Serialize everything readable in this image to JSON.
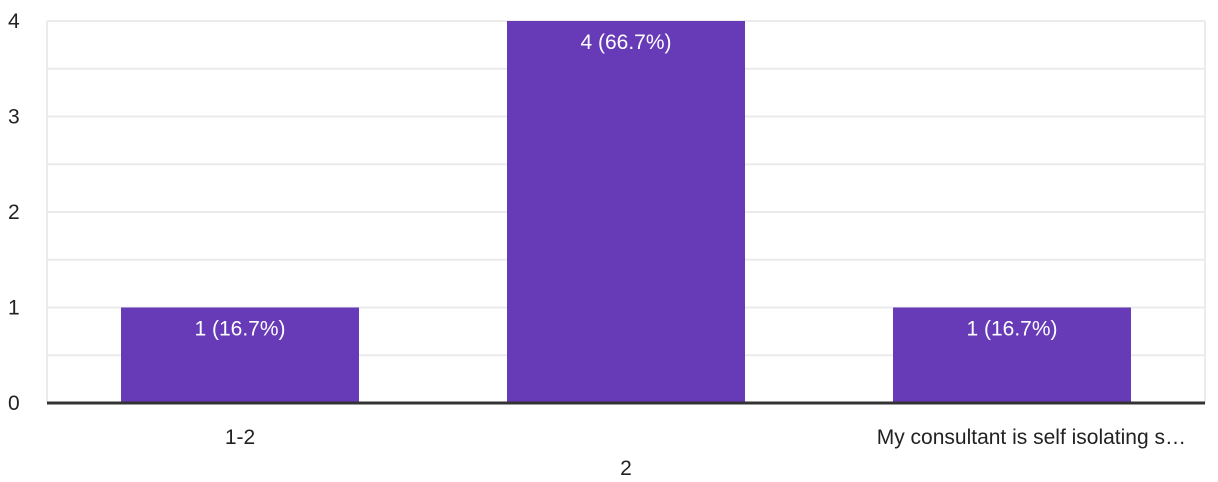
{
  "chart_data": {
    "type": "bar",
    "categories": [
      "1-2",
      "2",
      "My consultant is self isolating s…"
    ],
    "values": [
      1,
      4,
      1
    ],
    "data_labels": [
      "1 (16.7%)",
      "4 (66.7%)",
      "1 (16.7%)"
    ],
    "y_ticks": [
      "0",
      "1",
      "2",
      "3",
      "4"
    ],
    "ylim": [
      0,
      4
    ],
    "minor_grid_step": 0.5,
    "grid": true,
    "legend": "none",
    "title": "",
    "xlabel": "",
    "ylabel": "",
    "colors": {
      "bar": "#673ab7",
      "grid": "#ebebeb",
      "axis": "#333333"
    }
  }
}
